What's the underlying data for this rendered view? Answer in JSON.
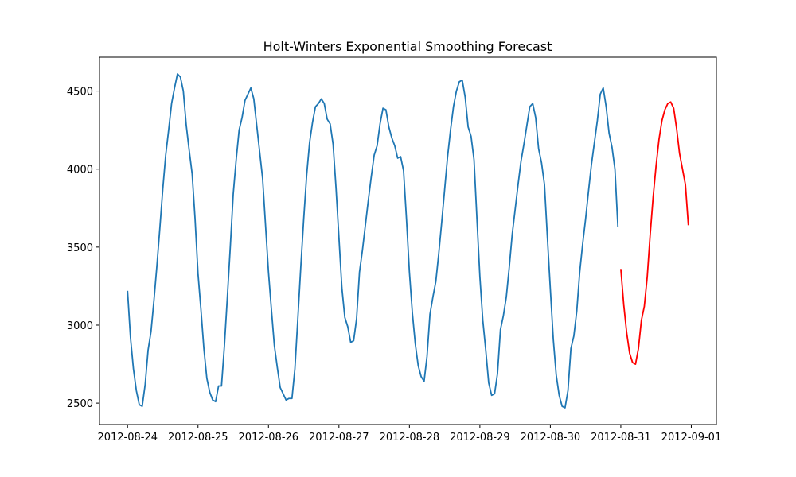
{
  "chart_data": {
    "type": "line",
    "title": "Holt-Winters Exponential Smoothing Forecast",
    "xlim": [
      "2012-08-23 14:27",
      "2012-09-01 08:33"
    ],
    "xticks": [
      "2012-08-24",
      "2012-08-25",
      "2012-08-26",
      "2012-08-27",
      "2012-08-28",
      "2012-08-29",
      "2012-08-30",
      "2012-08-31",
      "2012-09-01"
    ],
    "ylim": [
      2363,
      4717
    ],
    "yticks": [
      2500,
      3000,
      3500,
      4000,
      4500
    ],
    "series": [
      {
        "color": "#1f77b4",
        "x": [
          "2012-08-24 00:00",
          "2012-08-24 01:00",
          "2012-08-24 02:00",
          "2012-08-24 03:00",
          "2012-08-24 04:00",
          "2012-08-24 05:00",
          "2012-08-24 06:00",
          "2012-08-24 07:00",
          "2012-08-24 08:00",
          "2012-08-24 09:00",
          "2012-08-24 10:00",
          "2012-08-24 11:00",
          "2012-08-24 12:00",
          "2012-08-24 13:00",
          "2012-08-24 14:00",
          "2012-08-24 15:00",
          "2012-08-24 16:00",
          "2012-08-24 17:00",
          "2012-08-24 18:00",
          "2012-08-24 19:00",
          "2012-08-24 20:00",
          "2012-08-24 21:00",
          "2012-08-24 22:00",
          "2012-08-24 23:00",
          "2012-08-25 00:00",
          "2012-08-25 01:00",
          "2012-08-25 02:00",
          "2012-08-25 03:00",
          "2012-08-25 04:00",
          "2012-08-25 05:00",
          "2012-08-25 06:00",
          "2012-08-25 07:00",
          "2012-08-25 08:00",
          "2012-08-25 09:00",
          "2012-08-25 10:00",
          "2012-08-25 11:00",
          "2012-08-25 12:00",
          "2012-08-25 13:00",
          "2012-08-25 14:00",
          "2012-08-25 15:00",
          "2012-08-25 16:00",
          "2012-08-25 17:00",
          "2012-08-25 18:00",
          "2012-08-25 19:00",
          "2012-08-25 20:00",
          "2012-08-25 21:00",
          "2012-08-25 22:00",
          "2012-08-25 23:00",
          "2012-08-26 00:00",
          "2012-08-26 01:00",
          "2012-08-26 02:00",
          "2012-08-26 03:00",
          "2012-08-26 04:00",
          "2012-08-26 05:00",
          "2012-08-26 06:00",
          "2012-08-26 07:00",
          "2012-08-26 08:00",
          "2012-08-26 09:00",
          "2012-08-26 10:00",
          "2012-08-26 11:00",
          "2012-08-26 12:00",
          "2012-08-26 13:00",
          "2012-08-26 14:00",
          "2012-08-26 15:00",
          "2012-08-26 16:00",
          "2012-08-26 17:00",
          "2012-08-26 18:00",
          "2012-08-26 19:00",
          "2012-08-26 20:00",
          "2012-08-26 21:00",
          "2012-08-26 22:00",
          "2012-08-26 23:00",
          "2012-08-27 00:00",
          "2012-08-27 01:00",
          "2012-08-27 02:00",
          "2012-08-27 03:00",
          "2012-08-27 04:00",
          "2012-08-27 05:00",
          "2012-08-27 06:00",
          "2012-08-27 07:00",
          "2012-08-27 08:00",
          "2012-08-27 09:00",
          "2012-08-27 10:00",
          "2012-08-27 11:00",
          "2012-08-27 12:00",
          "2012-08-27 13:00",
          "2012-08-27 14:00",
          "2012-08-27 15:00",
          "2012-08-27 16:00",
          "2012-08-27 17:00",
          "2012-08-27 18:00",
          "2012-08-27 19:00",
          "2012-08-27 20:00",
          "2012-08-27 21:00",
          "2012-08-27 22:00",
          "2012-08-27 23:00",
          "2012-08-28 00:00",
          "2012-08-28 01:00",
          "2012-08-28 02:00",
          "2012-08-28 03:00",
          "2012-08-28 04:00",
          "2012-08-28 05:00",
          "2012-08-28 06:00",
          "2012-08-28 07:00",
          "2012-08-28 08:00",
          "2012-08-28 09:00",
          "2012-08-28 10:00",
          "2012-08-28 11:00",
          "2012-08-28 12:00",
          "2012-08-28 13:00",
          "2012-08-28 14:00",
          "2012-08-28 15:00",
          "2012-08-28 16:00",
          "2012-08-28 17:00",
          "2012-08-28 18:00",
          "2012-08-28 19:00",
          "2012-08-28 20:00",
          "2012-08-28 21:00",
          "2012-08-28 22:00",
          "2012-08-28 23:00",
          "2012-08-29 00:00",
          "2012-08-29 01:00",
          "2012-08-29 02:00",
          "2012-08-29 03:00",
          "2012-08-29 04:00",
          "2012-08-29 05:00",
          "2012-08-29 06:00",
          "2012-08-29 07:00",
          "2012-08-29 08:00",
          "2012-08-29 09:00",
          "2012-08-29 10:00",
          "2012-08-29 11:00",
          "2012-08-29 12:00",
          "2012-08-29 13:00",
          "2012-08-29 14:00",
          "2012-08-29 15:00",
          "2012-08-29 16:00",
          "2012-08-29 17:00",
          "2012-08-29 18:00",
          "2012-08-29 19:00",
          "2012-08-29 20:00",
          "2012-08-29 21:00",
          "2012-08-29 22:00",
          "2012-08-29 23:00",
          "2012-08-30 00:00",
          "2012-08-30 01:00",
          "2012-08-30 02:00",
          "2012-08-30 03:00",
          "2012-08-30 04:00",
          "2012-08-30 05:00",
          "2012-08-30 06:00",
          "2012-08-30 07:00",
          "2012-08-30 08:00",
          "2012-08-30 09:00",
          "2012-08-30 10:00",
          "2012-08-30 11:00",
          "2012-08-30 12:00",
          "2012-08-30 13:00",
          "2012-08-30 14:00",
          "2012-08-30 15:00",
          "2012-08-30 16:00",
          "2012-08-30 17:00",
          "2012-08-30 18:00",
          "2012-08-30 19:00",
          "2012-08-30 20:00",
          "2012-08-30 21:00",
          "2012-08-30 22:00",
          "2012-08-30 23:00"
        ],
        "values": [
          3220,
          2920,
          2720,
          2580,
          2490,
          2480,
          2620,
          2840,
          2960,
          3160,
          3380,
          3620,
          3870,
          4090,
          4250,
          4420,
          4520,
          4610,
          4590,
          4500,
          4280,
          4120,
          3970,
          3680,
          3330,
          3100,
          2850,
          2660,
          2570,
          2520,
          2510,
          2610,
          2610,
          2870,
          3180,
          3500,
          3840,
          4060,
          4250,
          4330,
          4440,
          4480,
          4520,
          4450,
          4280,
          4110,
          3940,
          3640,
          3340,
          3100,
          2870,
          2730,
          2600,
          2560,
          2520,
          2530,
          2530,
          2720,
          3040,
          3370,
          3680,
          3960,
          4170,
          4300,
          4400,
          4420,
          4450,
          4420,
          4320,
          4290,
          4160,
          3880,
          3560,
          3240,
          3050,
          2990,
          2890,
          2900,
          3040,
          3340,
          3480,
          3640,
          3800,
          3950,
          4090,
          4150,
          4290,
          4390,
          4380,
          4270,
          4200,
          4150,
          4070,
          4080,
          3990,
          3680,
          3340,
          3080,
          2880,
          2740,
          2670,
          2640,
          2800,
          3070,
          3180,
          3280,
          3460,
          3660,
          3870,
          4080,
          4250,
          4400,
          4500,
          4560,
          4570,
          4460,
          4270,
          4210,
          4060,
          3680,
          3310,
          3030,
          2840,
          2630,
          2550,
          2560,
          2690,
          2970,
          3060,
          3180,
          3370,
          3580,
          3740,
          3900,
          4050,
          4160,
          4280,
          4400,
          4420,
          4330,
          4130,
          4040,
          3900,
          3560,
          3230,
          2910,
          2680,
          2550,
          2480,
          2470,
          2580,
          2850,
          2930,
          3090,
          3340,
          3520,
          3680,
          3860,
          4030,
          4170,
          4310,
          4480,
          4520,
          4400,
          4230,
          4140,
          4000,
          3630
        ]
      },
      {
        "color": "#ff0000",
        "x": [
          "2012-08-31 00:00",
          "2012-08-31 01:00",
          "2012-08-31 02:00",
          "2012-08-31 03:00",
          "2012-08-31 04:00",
          "2012-08-31 05:00",
          "2012-08-31 06:00",
          "2012-08-31 07:00",
          "2012-08-31 08:00",
          "2012-08-31 09:00",
          "2012-08-31 10:00",
          "2012-08-31 11:00",
          "2012-08-31 12:00",
          "2012-08-31 13:00",
          "2012-08-31 14:00",
          "2012-08-31 15:00",
          "2012-08-31 16:00",
          "2012-08-31 17:00",
          "2012-08-31 18:00",
          "2012-08-31 19:00",
          "2012-08-31 20:00",
          "2012-08-31 21:00",
          "2012-08-31 22:00",
          "2012-08-31 23:00"
        ],
        "values": [
          3360,
          3130,
          2950,
          2820,
          2760,
          2750,
          2850,
          3030,
          3120,
          3310,
          3580,
          3820,
          4020,
          4190,
          4310,
          4380,
          4420,
          4430,
          4390,
          4260,
          4100,
          4000,
          3900,
          3640
        ]
      }
    ]
  }
}
